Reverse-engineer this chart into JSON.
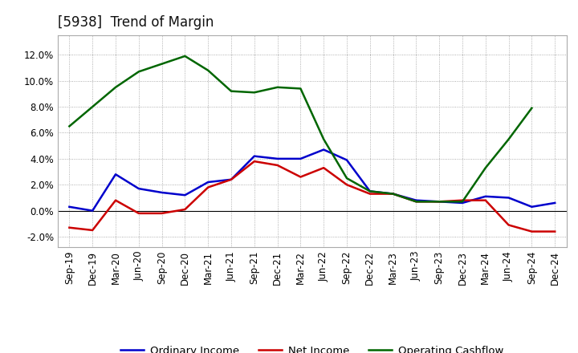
{
  "title": "[5938]  Trend of Margin",
  "x_labels": [
    "Sep-19",
    "Dec-19",
    "Mar-20",
    "Jun-20",
    "Sep-20",
    "Dec-20",
    "Mar-21",
    "Jun-21",
    "Sep-21",
    "Dec-21",
    "Mar-22",
    "Jun-22",
    "Sep-22",
    "Dec-22",
    "Mar-23",
    "Jun-23",
    "Sep-23",
    "Dec-23",
    "Mar-24",
    "Jun-24",
    "Sep-24",
    "Dec-24"
  ],
  "ordinary_income": [
    0.3,
    0.0,
    2.8,
    1.7,
    1.4,
    1.2,
    2.2,
    2.4,
    4.2,
    4.0,
    4.0,
    4.7,
    3.9,
    1.5,
    1.3,
    0.8,
    0.7,
    0.6,
    1.1,
    1.0,
    0.3,
    0.6
  ],
  "net_income": [
    -1.3,
    -1.5,
    0.8,
    -0.2,
    -0.2,
    0.1,
    1.8,
    2.4,
    3.8,
    3.5,
    2.6,
    3.3,
    2.0,
    1.3,
    1.3,
    0.7,
    0.7,
    0.8,
    0.8,
    -1.1,
    -1.6,
    -1.6
  ],
  "operating_cashflow": [
    6.5,
    8.0,
    9.5,
    10.7,
    11.3,
    11.9,
    10.8,
    9.2,
    9.1,
    9.5,
    9.4,
    5.5,
    2.5,
    1.5,
    1.3,
    0.7,
    0.7,
    0.7,
    3.3,
    5.5,
    7.9,
    null
  ],
  "ylim": [
    -2.8,
    13.5
  ],
  "yticks": [
    -2.0,
    0.0,
    2.0,
    4.0,
    6.0,
    8.0,
    10.0,
    12.0
  ],
  "ordinary_income_color": "#0000cc",
  "net_income_color": "#cc0000",
  "operating_cashflow_color": "#006600",
  "background_color": "#ffffff",
  "plot_bg_color": "#ffffff",
  "grid_color": "#999999",
  "title_fontsize": 12,
  "legend_fontsize": 9.5,
  "tick_fontsize": 8.5
}
